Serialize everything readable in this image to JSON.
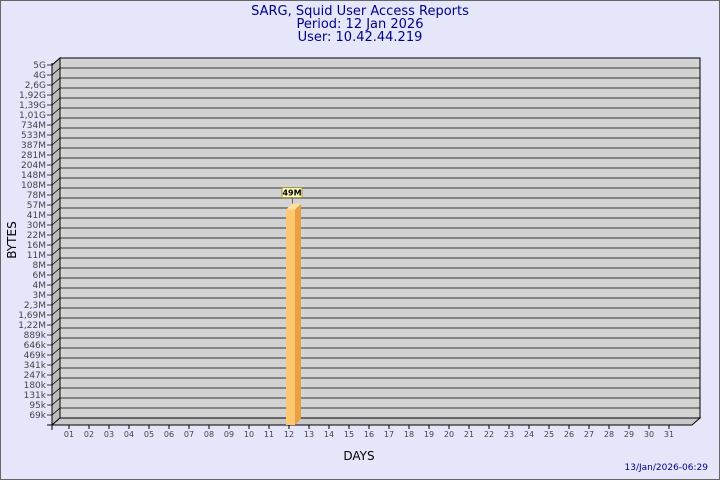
{
  "chart_data": {
    "type": "bar",
    "title": "SARG, Squid User Access Reports",
    "subtitle": [
      "Period: 12 Jan 2026",
      "User: 10.42.44.219"
    ],
    "xlabel": "DAYS",
    "ylabel": "BYTES",
    "yscale": "log",
    "grid": true,
    "categories": [
      "01",
      "02",
      "03",
      "04",
      "05",
      "06",
      "07",
      "08",
      "09",
      "10",
      "11",
      "12",
      "13",
      "14",
      "15",
      "16",
      "17",
      "18",
      "19",
      "20",
      "21",
      "22",
      "23",
      "24",
      "25",
      "26",
      "27",
      "28",
      "29",
      "30",
      "31"
    ],
    "yticks": [
      "5G",
      "4G",
      "2,6G",
      "1,92G",
      "1,39G",
      "1,01G",
      "734M",
      "533M",
      "387M",
      "281M",
      "204M",
      "148M",
      "108M",
      "78M",
      "57M",
      "41M",
      "30M",
      "22M",
      "16M",
      "11M",
      "8M",
      "6M",
      "4M",
      "3M",
      "2,3M",
      "1,69M",
      "1,22M",
      "889k",
      "646k",
      "469k",
      "341k",
      "247k",
      "180k",
      "131k",
      "95k",
      "69k"
    ],
    "series": [
      {
        "values": [
          0,
          0,
          0,
          0,
          0,
          0,
          0,
          0,
          0,
          0,
          0,
          49000000,
          0,
          0,
          0,
          0,
          0,
          0,
          0,
          0,
          0,
          0,
          0,
          0,
          0,
          0,
          0,
          0,
          0,
          0,
          0
        ],
        "labels": {
          "12": "49M"
        }
      }
    ],
    "colors": {
      "bar_front": "#ffc870",
      "bar_side": "#e8a040",
      "bar_top": "#ffe0a0",
      "wall": "#d3d3d3",
      "background": "#e6e6fa",
      "title": "#00008b"
    }
  },
  "footer": {
    "timestamp": "13/Jan/2026-06:29"
  }
}
